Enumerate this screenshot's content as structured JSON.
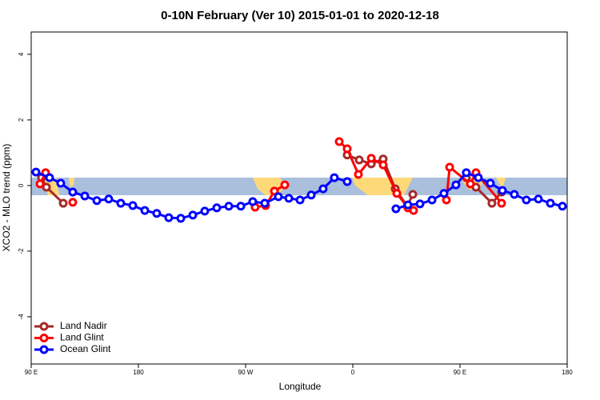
{
  "chart_data": {
    "type": "line",
    "title": "0-10N February (Ver 10)   2015-01-01 to 2020-12-18",
    "x_label": "Longitude",
    "y_label": "XCO2 - MLO trend (ppm)",
    "xlim": [
      90,
      540
    ],
    "ylim": [
      -5.44,
      4.68
    ],
    "xticks": [
      {
        "value": 90,
        "label": "90 E"
      },
      180,
      {
        "value": 270,
        "label": "90 W"
      },
      {
        "value": 360,
        "label": "0"
      },
      {
        "value": 450,
        "label": "90 E"
      },
      180
    ],
    "yticks": [
      -4,
      -2,
      0,
      2,
      4
    ],
    "legend": "bottom-left",
    "series": [
      {
        "name": "Land Nadir",
        "color": "#a52a2a",
        "x": [
          98.7,
          102.8,
          116.9,
          null,
          355.3,
          365.4,
          375.5,
          385.5,
          395.6,
          405.7,
          410.4,
          null,
          455.3,
          463.4,
          476.8,
          484.9
        ],
        "values": [
          0.24,
          -0.05,
          -0.54,
          null,
          0.93,
          0.78,
          0.66,
          0.81,
          -0.1,
          -0.63,
          -0.27,
          null,
          0.24,
          -0.05,
          -0.54,
          -0.2
        ]
      },
      {
        "name": "Land Glint",
        "color": "#ff0000",
        "x": [
          97.4,
          102.1,
          null,
          124.9,
          null,
          278.0,
          286.8,
          294.2,
          302.9,
          null,
          348.6,
          355.3,
          364.7,
          375.5,
          385.5,
          397.0,
          406.3,
          411.0,
          null,
          438.6,
          441.3,
          458.7,
          463.4,
          484.9
        ],
        "values": [
          0.05,
          0.39,
          null,
          -0.51,
          null,
          -0.66,
          -0.61,
          -0.17,
          0.02,
          null,
          1.34,
          1.12,
          0.34,
          0.83,
          0.63,
          -0.24,
          -0.68,
          -0.76,
          null,
          -0.44,
          0.56,
          0.05,
          0.39,
          -0.54
        ]
      },
      {
        "name": "Ocean Glint",
        "color": "#0000ff",
        "x": [
          94.0,
          105.4,
          114.8,
          124.9,
          135.0,
          145.1,
          155.1,
          165.2,
          175.3,
          185.4,
          195.4,
          205.5,
          215.6,
          225.7,
          235.7,
          245.8,
          255.9,
          266.0,
          276.0,
          286.1,
          297.5,
          306.3,
          315.7,
          325.1,
          335.1,
          344.5,
          355.3,
          null,
          396.2,
          406.3,
          416.4,
          426.5,
          436.5,
          446.6,
          455.3,
          465.4,
          475.5,
          485.6,
          495.6,
          505.7,
          515.8,
          525.9,
          536.0
        ],
        "values": [
          0.41,
          0.24,
          0.07,
          -0.2,
          -0.32,
          -0.46,
          -0.41,
          -0.54,
          -0.61,
          -0.76,
          -0.85,
          -0.98,
          -1.0,
          -0.9,
          -0.78,
          -0.68,
          -0.63,
          -0.63,
          -0.49,
          -0.54,
          -0.34,
          -0.39,
          -0.44,
          -0.29,
          -0.1,
          0.24,
          0.12,
          null,
          -0.71,
          -0.59,
          -0.56,
          -0.44,
          -0.24,
          0.02,
          0.39,
          0.24,
          0.07,
          -0.15,
          -0.27,
          -0.44,
          -0.41,
          -0.54,
          -0.63
        ]
      }
    ]
  }
}
